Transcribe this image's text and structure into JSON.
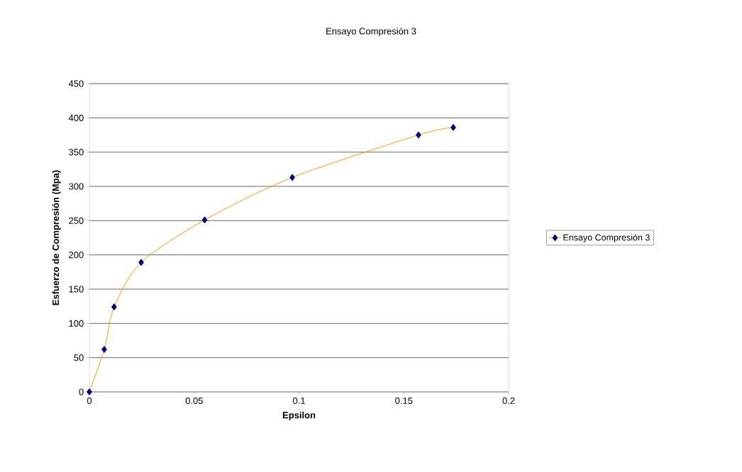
{
  "chart_data": {
    "type": "line",
    "title": "Ensayo Compresión 3",
    "xlabel": "Epsilon",
    "ylabel": "Esfuerzo de Compresión (Mpa)",
    "x": [
      0,
      0.0071,
      0.0118,
      0.0247,
      0.055,
      0.0968,
      0.157,
      0.1736
    ],
    "series": [
      {
        "name": "Ensayo Compresión 3",
        "color": "#ff9900",
        "values": [
          0,
          62,
          124,
          189,
          251,
          313,
          375,
          386
        ]
      }
    ],
    "xlim": [
      0,
      0.2
    ],
    "ylim": [
      0,
      450
    ],
    "xticks": [
      0,
      0.05,
      0.1,
      0.15,
      0.2
    ],
    "yticks": [
      0,
      50,
      100,
      150,
      200,
      250,
      300,
      350,
      400,
      450
    ],
    "grid": "y",
    "legend": "right",
    "marker": "diamond",
    "line_style": "solid"
  }
}
